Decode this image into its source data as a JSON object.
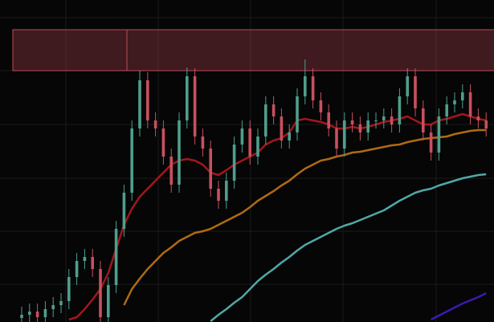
{
  "chart_data": {
    "type": "candlestick",
    "ylim": [
      0,
      401
    ],
    "grid": true,
    "up_color": "#4f9e8c",
    "down_color": "#c8505f",
    "zone": {
      "low": 313,
      "high": 364,
      "color": "#c24a55"
    },
    "open": [
      5,
      9,
      13,
      6,
      16,
      21,
      26,
      56,
      76,
      81,
      66,
      6,
      46,
      116,
      161,
      241,
      301,
      251,
      241,
      206,
      171,
      251,
      306,
      231,
      216,
      166,
      151,
      176,
      221,
      241,
      206,
      231,
      271,
      256,
      226,
      236,
      281,
      306,
      276,
      261,
      241,
      216,
      251,
      246,
      236,
      251,
      251,
      256,
      246,
      281,
      306,
      266,
      236,
      211,
      256,
      271,
      276,
      286,
      256,
      251
    ],
    "high": [
      19,
      23,
      23,
      26,
      31,
      36,
      66,
      86,
      91,
      91,
      76,
      56,
      126,
      171,
      251,
      313,
      311,
      261,
      251,
      216,
      261,
      317,
      316,
      241,
      226,
      176,
      186,
      231,
      251,
      251,
      241,
      281,
      281,
      266,
      246,
      291,
      327,
      316,
      286,
      271,
      251,
      261,
      261,
      256,
      261,
      261,
      266,
      266,
      291,
      316,
      316,
      276,
      246,
      266,
      281,
      286,
      296,
      296,
      266,
      261
    ],
    "low": [
      0,
      0,
      0,
      0,
      6,
      11,
      16,
      46,
      66,
      56,
      0,
      0,
      36,
      106,
      151,
      231,
      241,
      231,
      196,
      161,
      161,
      241,
      221,
      206,
      156,
      141,
      141,
      166,
      211,
      196,
      196,
      221,
      246,
      216,
      216,
      226,
      271,
      266,
      251,
      231,
      206,
      206,
      236,
      226,
      226,
      241,
      241,
      236,
      236,
      271,
      256,
      226,
      201,
      201,
      246,
      261,
      266,
      246,
      241,
      231
    ],
    "close": [
      9,
      13,
      6,
      16,
      21,
      26,
      56,
      76,
      81,
      66,
      6,
      46,
      116,
      161,
      241,
      301,
      251,
      241,
      206,
      171,
      251,
      306,
      231,
      216,
      166,
      151,
      176,
      221,
      241,
      206,
      231,
      271,
      256,
      226,
      236,
      281,
      306,
      276,
      261,
      241,
      216,
      251,
      246,
      236,
      251,
      251,
      256,
      246,
      281,
      306,
      266,
      236,
      211,
      256,
      271,
      276,
      286,
      256,
      251,
      241
    ],
    "series": [
      {
        "color": "#a3161c",
        "values": [
          null,
          null,
          null,
          null,
          null,
          null,
          3,
          6,
          16,
          28,
          41,
          61,
          91,
          121,
          141,
          156,
          166,
          176,
          186,
          196,
          201,
          203,
          201,
          196,
          186,
          183,
          189,
          196,
          201,
          206,
          211,
          221,
          226,
          229,
          236,
          251,
          253,
          251,
          249,
          246,
          241,
          241,
          243,
          241,
          243,
          246,
          249,
          251,
          253,
          256,
          251,
          246,
          246,
          251,
          253,
          256,
          259,
          256,
          253,
          251
        ]
      },
      {
        "color": "#b06a12",
        "values": [
          null,
          null,
          null,
          null,
          null,
          null,
          null,
          null,
          null,
          null,
          null,
          null,
          null,
          21,
          41,
          54,
          66,
          76,
          86,
          93,
          101,
          106,
          111,
          113,
          116,
          121,
          126,
          131,
          136,
          143,
          151,
          157,
          163,
          170,
          176,
          184,
          191,
          196,
          201,
          203,
          206,
          208,
          211,
          212,
          214,
          216,
          218,
          220,
          221,
          224,
          226,
          228,
          229,
          230,
          231,
          234,
          236,
          238,
          239,
          239
        ]
      },
      {
        "color": "#4fa8a6",
        "values": [
          null,
          null,
          null,
          null,
          null,
          null,
          null,
          null,
          null,
          null,
          null,
          null,
          null,
          null,
          null,
          null,
          null,
          null,
          null,
          null,
          null,
          null,
          null,
          null,
          1,
          9,
          16,
          24,
          31,
          41,
          51,
          59,
          66,
          74,
          81,
          89,
          96,
          101,
          106,
          111,
          116,
          120,
          123,
          127,
          131,
          135,
          139,
          145,
          151,
          156,
          161,
          164,
          166,
          170,
          173,
          176,
          179,
          181,
          183,
          184
        ]
      },
      {
        "color": "#3b1ab5",
        "values": [
          null,
          null,
          null,
          null,
          null,
          null,
          null,
          null,
          null,
          null,
          null,
          null,
          null,
          null,
          null,
          null,
          null,
          null,
          null,
          null,
          null,
          null,
          null,
          null,
          null,
          null,
          null,
          null,
          null,
          null,
          null,
          null,
          null,
          null,
          null,
          null,
          null,
          null,
          null,
          null,
          null,
          null,
          null,
          null,
          null,
          null,
          null,
          null,
          null,
          null,
          null,
          null,
          3,
          8,
          13,
          18,
          23,
          27,
          31,
          36
        ]
      }
    ]
  }
}
